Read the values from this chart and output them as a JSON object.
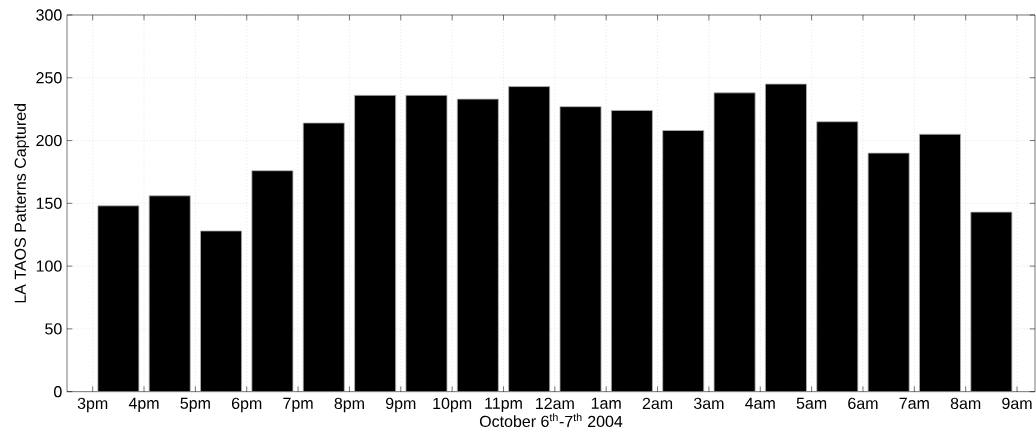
{
  "chart_data": {
    "type": "bar",
    "xlabel": "October 6$^{th}$-7$^{th}$ 2004",
    "ylabel": "LA TAOS Patterns Captured",
    "categories": [
      "3pm",
      "4pm",
      "5pm",
      "6pm",
      "7pm",
      "8pm",
      "9pm",
      "10pm",
      "11pm",
      "12am",
      "1am",
      "2am",
      "3am",
      "4am",
      "5am",
      "6am",
      "7am",
      "8am",
      "9am"
    ],
    "values": [
      148,
      156,
      128,
      176,
      214,
      236,
      236,
      233,
      243,
      227,
      224,
      208,
      238,
      245,
      215,
      190,
      205,
      143,
      null
    ],
    "color": "#000000",
    "ylim": [
      0,
      300
    ],
    "yticks": [
      0,
      50,
      100,
      150,
      200,
      250,
      300
    ],
    "grid": true
  }
}
